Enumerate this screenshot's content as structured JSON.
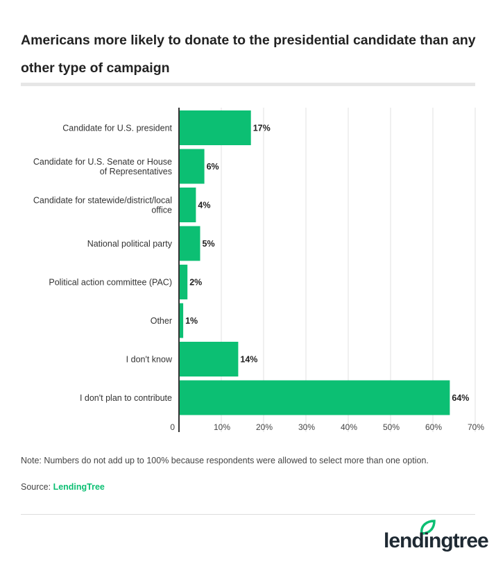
{
  "title": "Americans more likely to donate to the presidential candidate than any other type of campaign",
  "note": "Note: Numbers do not add up to 100% because respondents were allowed to select more than one option.",
  "source_label": "Source: ",
  "source_link": "LendingTree",
  "logo": "lendingtree",
  "chart_data": {
    "type": "bar",
    "orientation": "horizontal",
    "categories": [
      [
        "Candidate for U.S. president"
      ],
      [
        "Candidate for U.S. Senate or House",
        "of Representatives"
      ],
      [
        "Candidate for statewide/district/local",
        "office"
      ],
      [
        "National political party"
      ],
      [
        "Political action committee (PAC)"
      ],
      [
        "Other"
      ],
      [
        "I don't know"
      ],
      [
        "I don't plan to contribute"
      ]
    ],
    "values": [
      17,
      6,
      4,
      5,
      2,
      1,
      14,
      64
    ],
    "data_labels": [
      "17%",
      "6%",
      "4%",
      "5%",
      "2%",
      "1%",
      "14%",
      "64%"
    ],
    "xlim": [
      0,
      70
    ],
    "x_ticks": [
      "0",
      "10%",
      "20%",
      "30%",
      "40%",
      "50%",
      "60%",
      "70%"
    ],
    "grid": true,
    "bar_color": "#0cbf73"
  }
}
